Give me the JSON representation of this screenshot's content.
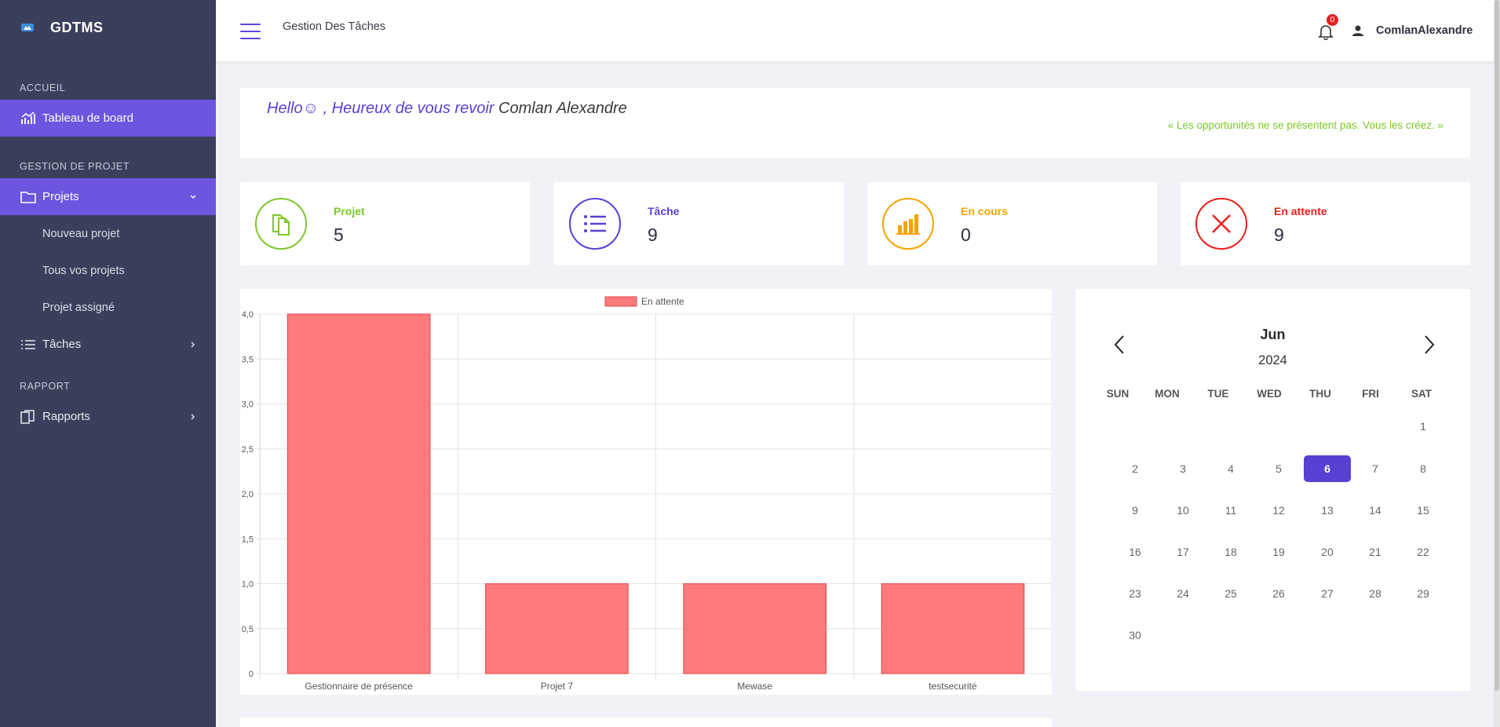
{
  "sidebar": {
    "brand": "GDTMS",
    "sections": {
      "accueil": "ACCUEIL",
      "gestion": "GESTION DE PROJET",
      "rapport": "RAPPORT"
    },
    "items": {
      "dashboard": "Tableau de board",
      "projets": "Projets",
      "nouveau_projet": "Nouveau projet",
      "tous_projets": "Tous vos projets",
      "projet_assigne": "Projet assigné",
      "taches": "Tâches",
      "rapports": "Rapports"
    },
    "active_color": "#6e55e0",
    "background": "#3a3f5c"
  },
  "topbar": {
    "title": "Gestion Des Tâches",
    "notification_count": "0",
    "user": "ComlanAlexandre"
  },
  "greeting": {
    "hello": "Hello☺ , Heureux de vous revoir",
    "name": "Comlan Alexandre",
    "quote": "« Les opportunités ne se présentent pas. Vous les créez. »"
  },
  "stats": [
    {
      "label": "Projet",
      "value": "5",
      "color": "#7ec72a",
      "icon": "document-icon"
    },
    {
      "label": "Tâche",
      "value": "9",
      "color": "#5a3fd4",
      "icon": "list-icon"
    },
    {
      "label": "En cours",
      "value": "0",
      "color": "#f4a300",
      "icon": "bar-chart-icon"
    },
    {
      "label": "En attente",
      "value": "9",
      "color": "#ee1c1c",
      "icon": "close-icon"
    }
  ],
  "chart_data": {
    "type": "bar",
    "categories": [
      "Gestionnaire de présence",
      "Projet 7",
      "Mewase",
      "testsecurité"
    ],
    "series": [
      {
        "name": "En attente",
        "values": [
          4,
          1,
          1,
          1
        ],
        "color": "#ff7b7b"
      }
    ],
    "yticks": [
      "0",
      "0,5",
      "1,0",
      "1,5",
      "2,0",
      "2,5",
      "3,0",
      "3,5",
      "4,0"
    ],
    "ylim": [
      0,
      4
    ],
    "grid": true,
    "legend": "top-center"
  },
  "calendar": {
    "month": "Jun",
    "year": "2024",
    "weekdays": [
      "SUN",
      "MON",
      "TUE",
      "WED",
      "THU",
      "FRI",
      "SAT"
    ],
    "first_weekday": 6,
    "days_in_month": 30,
    "today": 6
  }
}
